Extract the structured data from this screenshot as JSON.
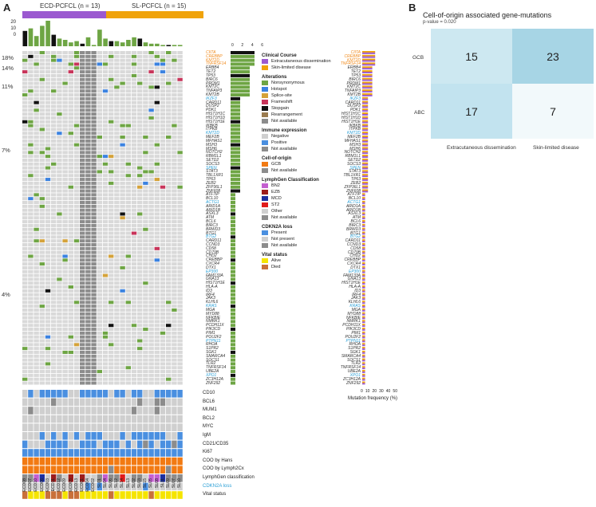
{
  "panel_a": {
    "letter": "A",
    "group1": "ECD-PCFCL (n = 13)",
    "group2": "SL-PCFCL (n = 15)",
    "group1_color": "#9b59d0",
    "group2_color": "#f0a30a",
    "tmb_ticks": [
      "20",
      "10",
      "0"
    ],
    "top_axis_ticks": [
      "0",
      "2",
      "4",
      "6"
    ],
    "freq_axis_ticks": [
      "0",
      "10",
      "20",
      "30",
      "40",
      "50"
    ],
    "freq_axis_label": "Mutation frequency (%)",
    "pct_labels": [
      "18%",
      "14%",
      "11%",
      "7%",
      "4%"
    ],
    "genes": [
      "CIITA",
      "CREBBP",
      "KMT2D",
      "TNFRSF14",
      "ERBB4",
      "TET2",
      "TP53",
      "BIRC6",
      "PRDM1",
      "KMT2C",
      "TNFAIP3",
      "KMT2B",
      "IKZF3",
      "CARD11",
      "DUSP2",
      "PDK1",
      "HIST1H1C",
      "HIST1H1D",
      "HIST1H1E",
      "IKBKB",
      "ITPKB",
      "KMT2D",
      "MEF2B",
      "MFHAS1",
      "MSH3",
      "MSH6",
      "NOTCH2",
      "RBM1L1",
      "SETD2",
      "SOCS3",
      "SPEN",
      "STAT3",
      "TBL1XR1",
      "TP63",
      "ZEB2",
      "ZFP36L1",
      "ZNF608",
      "ATF7IP",
      "BCL10",
      "ACTG1",
      "ARID1A",
      "ARID1B",
      "ASXL3",
      "ATM",
      "BCL6",
      "BIRC3",
      "BRWD3",
      "BTG1",
      "BTG2",
      "CARD11",
      "CCND3",
      "CD58",
      "CD79B",
      "CHD2",
      "CREBBP",
      "CXCR4",
      "DTX1",
      "EP300",
      "FAM133A",
      "GNA13",
      "HIST1H1E",
      "HLA-A",
      "ID3",
      "IRF4",
      "JAK3",
      "KLHL6",
      "KRAS",
      "MGA",
      "MYD88",
      "NFKBIE",
      "NMRK1",
      "PCDH11X",
      "PIK3CD",
      "PIM1",
      "POU2F2",
      "PTPN11",
      "RHOA",
      "S1PR2",
      "SGK1",
      "SMARCA4",
      "SOCS1",
      "TLR2",
      "TNFRSF14",
      "UBE2A",
      "XPO1",
      "ZC3H12A",
      "ZNF292"
    ],
    "gene_colors": {
      "orange": "#f08a1c",
      "blue": "#2a9fd6",
      "black": "#333333"
    },
    "annot_tracks": [
      "CD10",
      "BCL6",
      "MUM1",
      "BCL2",
      "MYC",
      "IgM",
      "CD21/CD35",
      "Ki67",
      "COO by Hans",
      "COO by Lymph2Cx",
      "LymphGen classification",
      "CDKN2A loss",
      "Vital status"
    ],
    "samples": [
      "ECD08",
      "ECD07",
      "ECD10",
      "ECD06",
      "ECD03",
      "ECD11",
      "ECD12",
      "ECD09",
      "ECD05",
      "ECD13",
      "ECD01",
      "ECD04",
      "ECD02",
      "SL01",
      "SL04",
      "SL06",
      "SL12",
      "SL14",
      "SL13",
      "SL02",
      "SL03",
      "SL15",
      "SL05",
      "SL08",
      "SL11",
      "SL09",
      "SL07",
      "SL10"
    ],
    "legend": {
      "clinical_course": {
        "title": "Clinical Course",
        "items": [
          {
            "label": "Extracutaneous dissemination",
            "color": "#9b59d0"
          },
          {
            "label": "Skin-limited disease",
            "color": "#f0a30a"
          }
        ]
      },
      "alterations": {
        "title": "Alterations",
        "items": [
          {
            "label": "Nonsynonymous",
            "color": "#6ea544"
          },
          {
            "label": "Hotspot",
            "color": "#3b82e0"
          },
          {
            "label": "Splice-site",
            "color": "#d4a23a"
          },
          {
            "label": "Frameshift",
            "color": "#c8345a"
          },
          {
            "label": "Stopgain",
            "color": "#111111"
          },
          {
            "label": "Rearrangement",
            "color": "#9a7b4f"
          },
          {
            "label": "Not available",
            "color": "#8c8c8c"
          }
        ]
      },
      "immune": {
        "title": "Immune expression",
        "items": [
          {
            "label": "Negative",
            "color": "#cfcfcf"
          },
          {
            "label": "Positive",
            "color": "#4a8fe0"
          },
          {
            "label": "Not available",
            "color": "#8c8c8c"
          }
        ]
      },
      "cell_of_origin": {
        "title": "Cell-of-origin",
        "items": [
          {
            "label": "GCB",
            "color": "#f27a12"
          },
          {
            "label": "Not available",
            "color": "#8c8c8c"
          }
        ]
      },
      "lymphgen": {
        "title": "LymphGen Classification",
        "items": [
          {
            "label": "BN2",
            "color": "#c45fd0"
          },
          {
            "label": "EZB",
            "color": "#9c1c1c"
          },
          {
            "label": "MCD",
            "color": "#1c2fa0"
          },
          {
            "label": "ST2",
            "color": "#e01b1b"
          },
          {
            "label": "Other",
            "color": "#cfcfcf"
          },
          {
            "label": "Not available",
            "color": "#8c8c8c"
          }
        ]
      },
      "cdkn2a": {
        "title": "CDKN2A loss",
        "items": [
          {
            "label": "Present",
            "color": "#4a8fe0"
          },
          {
            "label": "Not present",
            "color": "#cfcfcf"
          },
          {
            "label": "Not available",
            "color": "#8c8c8c"
          }
        ]
      },
      "vital": {
        "title": "Vital status",
        "items": [
          {
            "label": "Alive",
            "color": "#f5e400"
          },
          {
            "label": "Died",
            "color": "#c9703a"
          }
        ]
      }
    }
  },
  "panel_b": {
    "letter": "B",
    "title": "Cell-of-origin associated gene-mutations",
    "subtitle": "p-value = 0.020"
  },
  "chart_data": [
    {
      "type": "heatmap",
      "title": "Cell-of-origin associated gene-mutations",
      "subtitle": "p-value = 0.020",
      "rows": [
        "GCB",
        "ABC"
      ],
      "columns": [
        "Extracutaneous dissemination",
        "Skin-limited disease"
      ],
      "values": [
        [
          15,
          23
        ],
        [
          17,
          7
        ]
      ],
      "colors": [
        [
          "#cde8f1",
          "#a7d5e5"
        ],
        [
          "#c2e3ef",
          "#f2f9fb"
        ]
      ]
    },
    {
      "type": "bar",
      "title": "",
      "categories": [
        "CIITA",
        "CREBBP",
        "KMT2D",
        "TNFRSF14",
        "ERBB4",
        "TET2",
        "TP53",
        "BIRC6"
      ],
      "series": [
        {
          "name": "Extracutaneous dissemination",
          "values": [
            18,
            14,
            14,
            14,
            11,
            11,
            11,
            11
          ]
        },
        {
          "name": "Skin-limited disease",
          "values": [
            18,
            14,
            14,
            14,
            11,
            11,
            11,
            11
          ]
        }
      ],
      "xlabel": "Mutation frequency (%)",
      "xlim": [
        0,
        50
      ]
    }
  ]
}
